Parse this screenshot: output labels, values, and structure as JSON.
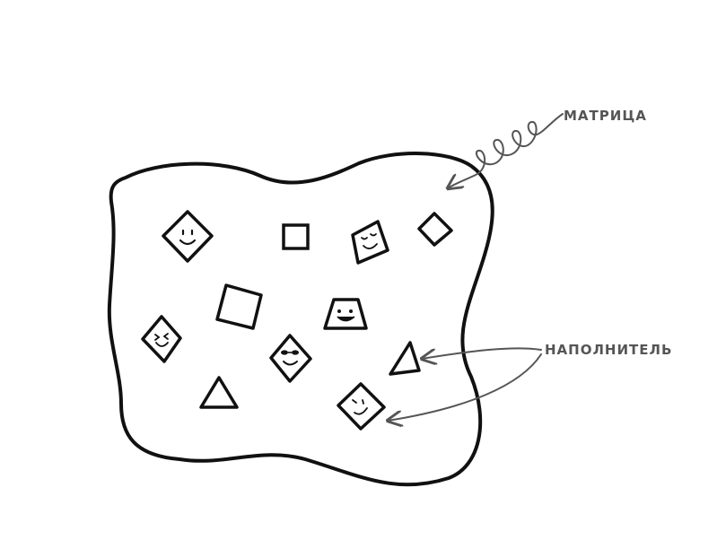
{
  "labels": {
    "matrix": "МАТРИЦА",
    "filler": "НАПОЛНИТЕЛЬ"
  },
  "colors": {
    "outline": "#111111",
    "annotation": "#555555",
    "background": "#ffffff"
  },
  "particles": [
    {
      "kind": "diamond",
      "face": "smile",
      "icon": "smiling-diamond-particle-icon"
    },
    {
      "kind": "square",
      "face": "none",
      "icon": "square-particle-icon"
    },
    {
      "kind": "tilted-square",
      "face": "sleepy",
      "icon": "sleepy-square-particle-icon"
    },
    {
      "kind": "diamond",
      "face": "none",
      "icon": "diamond-particle-icon"
    },
    {
      "kind": "square",
      "face": "none",
      "icon": "tilted-square-particle-icon"
    },
    {
      "kind": "trapezoid",
      "face": "happy",
      "icon": "happy-trapezoid-particle-icon"
    },
    {
      "kind": "diamond",
      "face": "laughing",
      "icon": "laughing-diamond-particle-icon"
    },
    {
      "kind": "diamond",
      "face": "sunglasses",
      "icon": "cool-diamond-particle-icon"
    },
    {
      "kind": "triangle",
      "face": "none",
      "icon": "triangle-particle-icon"
    },
    {
      "kind": "triangle",
      "face": "none",
      "icon": "pointed-triangle-particle-icon"
    },
    {
      "kind": "tilted-square",
      "face": "wink",
      "icon": "winking-square-particle-icon"
    }
  ]
}
